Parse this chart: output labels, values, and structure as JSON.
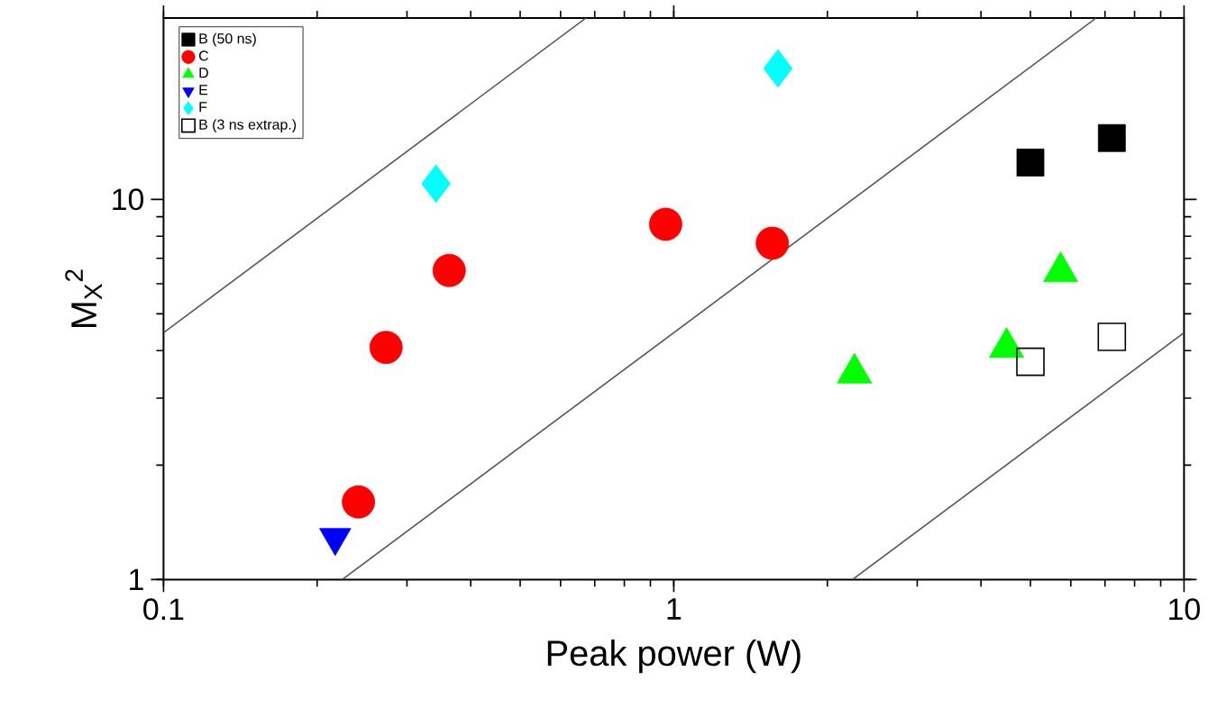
{
  "chart_data": {
    "type": "scatter",
    "xlabel": "Peak power (W)",
    "ylabel": "M$_{X}$$^{2}$",
    "log": "xy",
    "xlim": [
      0.1,
      10
    ],
    "ylim": [
      1,
      30
    ],
    "xticks": [
      0.1,
      1,
      10
    ],
    "yticks": [
      1,
      10
    ],
    "legend": "top left",
    "series": [
      {
        "name": "B (50 ns)",
        "color": "#000000",
        "marker": "square",
        "x": [
          5.0,
          7.22
        ],
        "values": [
          12.5,
          14.5
        ]
      },
      {
        "name": "C",
        "color": "#ff0000",
        "marker": "circle",
        "x": [
          0.241,
          0.273,
          0.363,
          0.964,
          1.56
        ],
        "values": [
          1.6,
          4.08,
          6.5,
          8.6,
          7.67
        ]
      },
      {
        "name": "D",
        "color": "#00ff00",
        "marker": "triangle",
        "x": [
          2.26,
          4.49,
          5.73
        ],
        "values": [
          3.49,
          4.08,
          6.45
        ]
      },
      {
        "name": "E",
        "color": "#0000ff",
        "marker": "triangle down",
        "x": [
          0.217
        ],
        "values": [
          1.29
        ]
      },
      {
        "name": "F",
        "color": "#00ffff",
        "marker": "diamond",
        "x": [
          0.342,
          1.6
        ],
        "values": [
          11.0,
          22.1
        ]
      },
      {
        "name": "B (3 ns extrap.)",
        "color": "#000000",
        "marker": "square",
        "x": [
          5.0,
          7.22
        ],
        "values": [
          3.74,
          4.35
        ]
      },
      {
        "type": "line",
        "color": "#555555",
        "line_style": "solid",
        "marker": "none",
        "x": [
          0.1,
          0.673
        ],
        "values": [
          4.46,
          30
        ]
      },
      {
        "type": "line",
        "color": "#555555",
        "line_style": "solid",
        "marker": "none",
        "x": [
          0.224,
          6.73
        ],
        "values": [
          1,
          30
        ]
      },
      {
        "type": "line",
        "color": "#555555",
        "line_style": "solid",
        "marker": "none",
        "x": [
          2.24,
          10
        ],
        "values": [
          1,
          4.46
        ]
      }
    ]
  }
}
